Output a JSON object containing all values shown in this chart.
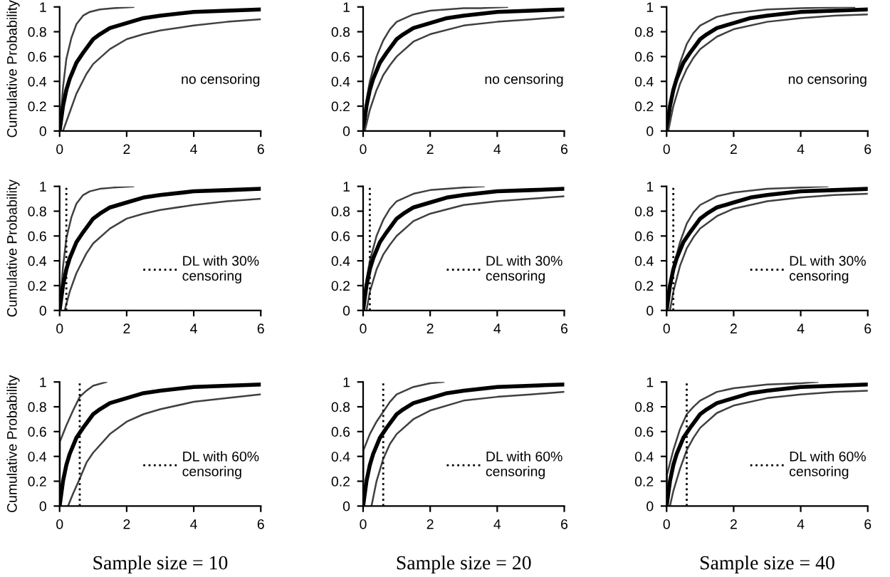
{
  "chart_data": [
    {
      "type": "line",
      "ylabel": "Cumulative Probability",
      "annotations": [
        "no censoring"
      ],
      "xlim": [
        0,
        6
      ],
      "ylim": [
        0,
        1
      ],
      "xticks": [
        0,
        2,
        4,
        6
      ],
      "yticks": [
        0,
        0.2,
        0.4,
        0.6,
        0.8,
        1
      ],
      "grid": false,
      "tick_labels": "xy",
      "series": [
        {
          "color": "#404040",
          "x": [
            0,
            0.1,
            0.2,
            0.35,
            0.5,
            0.7,
            0.9,
            1.2,
            1.6,
            2.2
          ],
          "values": [
            0,
            0.35,
            0.58,
            0.75,
            0.86,
            0.93,
            0.96,
            0.98,
            0.99,
            1.0
          ]
        },
        {
          "color": "#000000",
          "x": [
            0,
            0.1,
            0.2,
            0.3,
            0.5,
            0.7,
            1.0,
            1.2,
            1.5,
            2,
            2.5,
            3,
            4,
            5,
            6
          ],
          "values": [
            0,
            0.2,
            0.33,
            0.42,
            0.55,
            0.63,
            0.74,
            0.78,
            0.83,
            0.87,
            0.91,
            0.93,
            0.96,
            0.97,
            0.98
          ]
        },
        {
          "color": "#404040",
          "x": [
            0.1,
            0.3,
            0.5,
            0.8,
            1,
            1.5,
            2,
            2.5,
            3,
            4,
            5,
            6
          ],
          "values": [
            0,
            0.15,
            0.3,
            0.46,
            0.54,
            0.66,
            0.74,
            0.78,
            0.81,
            0.85,
            0.88,
            0.9
          ]
        }
      ]
    },
    {
      "type": "line",
      "annotations": [
        "no censoring"
      ],
      "xlim": [
        0,
        6
      ],
      "ylim": [
        0,
        1
      ],
      "xticks": [
        0,
        2,
        4,
        6
      ],
      "yticks": [
        0,
        0.2,
        0.4,
        0.6,
        0.8,
        1
      ],
      "grid": false,
      "series": [
        {
          "color": "#404040",
          "x": [
            0,
            0.1,
            0.2,
            0.4,
            0.6,
            0.8,
            1,
            1.5,
            2,
            2.5,
            3,
            3.5,
            4.3
          ],
          "values": [
            0,
            0.25,
            0.4,
            0.6,
            0.73,
            0.82,
            0.88,
            0.94,
            0.97,
            0.98,
            0.99,
            0.99,
            1.0
          ]
        },
        {
          "color": "#000000",
          "x": [
            0,
            0.1,
            0.2,
            0.3,
            0.5,
            0.7,
            1.0,
            1.2,
            1.5,
            2,
            2.5,
            3,
            4,
            5,
            6
          ],
          "values": [
            0,
            0.2,
            0.33,
            0.42,
            0.55,
            0.63,
            0.74,
            0.78,
            0.83,
            0.87,
            0.91,
            0.93,
            0.96,
            0.97,
            0.98
          ]
        },
        {
          "color": "#404040",
          "x": [
            0.05,
            0.2,
            0.4,
            0.6,
            0.8,
            1,
            1.5,
            2,
            3,
            4,
            5,
            6
          ],
          "values": [
            0,
            0.17,
            0.33,
            0.45,
            0.53,
            0.6,
            0.72,
            0.78,
            0.85,
            0.88,
            0.9,
            0.92
          ]
        }
      ]
    },
    {
      "type": "line",
      "annotations": [
        "no censoring"
      ],
      "xlim": [
        0,
        6
      ],
      "ylim": [
        0,
        1
      ],
      "xticks": [
        0,
        2,
        4,
        6
      ],
      "yticks": [
        0,
        0.2,
        0.4,
        0.6,
        0.8,
        1
      ],
      "grid": false,
      "series": [
        {
          "color": "#404040",
          "x": [
            0,
            0.1,
            0.2,
            0.4,
            0.6,
            0.8,
            1,
            1.5,
            2,
            3,
            4,
            5.6
          ],
          "values": [
            0,
            0.2,
            0.35,
            0.55,
            0.7,
            0.79,
            0.85,
            0.92,
            0.95,
            0.98,
            0.99,
            1.0
          ]
        },
        {
          "color": "#000000",
          "x": [
            0,
            0.1,
            0.2,
            0.3,
            0.5,
            0.7,
            1.0,
            1.2,
            1.5,
            2,
            2.5,
            3,
            4,
            5,
            6
          ],
          "values": [
            0,
            0.2,
            0.33,
            0.42,
            0.55,
            0.63,
            0.74,
            0.78,
            0.83,
            0.87,
            0.91,
            0.93,
            0.96,
            0.97,
            0.98
          ]
        },
        {
          "color": "#404040",
          "x": [
            0.05,
            0.2,
            0.4,
            0.6,
            0.8,
            1,
            1.5,
            2,
            3,
            4,
            5,
            6
          ],
          "values": [
            0,
            0.2,
            0.38,
            0.5,
            0.59,
            0.66,
            0.76,
            0.82,
            0.88,
            0.91,
            0.93,
            0.94
          ]
        }
      ]
    },
    {
      "type": "line",
      "ylabel": "Cumulative Probability",
      "xlim": [
        0,
        6
      ],
      "ylim": [
        0,
        1
      ],
      "xticks": [
        0,
        2,
        4,
        6
      ],
      "yticks": [
        0,
        0.2,
        0.4,
        0.6,
        0.8,
        1
      ],
      "grid": false,
      "legend": "right",
      "ref_lines": [
        {
          "axis": "x",
          "value": 0.2,
          "label": "DL with 30%\ncensoring",
          "color": "#000000",
          "line_style": "dotted"
        }
      ],
      "series": [
        {
          "color": "#404040",
          "x": [
            0,
            0.1,
            0.2,
            0.35,
            0.5,
            0.7,
            0.9,
            1.2,
            1.6,
            2.2
          ],
          "values": [
            0,
            0.35,
            0.58,
            0.75,
            0.86,
            0.93,
            0.96,
            0.98,
            0.99,
            1.0
          ]
        },
        {
          "color": "#000000",
          "x": [
            0,
            0.1,
            0.2,
            0.3,
            0.5,
            0.7,
            1.0,
            1.2,
            1.5,
            2,
            2.5,
            3,
            4,
            5,
            6
          ],
          "values": [
            0,
            0.2,
            0.33,
            0.42,
            0.55,
            0.63,
            0.74,
            0.78,
            0.83,
            0.87,
            0.91,
            0.93,
            0.96,
            0.97,
            0.98
          ]
        },
        {
          "color": "#404040",
          "x": [
            0.15,
            0.3,
            0.5,
            0.8,
            1,
            1.5,
            2,
            2.5,
            3,
            4,
            5,
            6
          ],
          "values": [
            0,
            0.15,
            0.3,
            0.46,
            0.54,
            0.66,
            0.74,
            0.78,
            0.81,
            0.85,
            0.88,
            0.9
          ]
        }
      ]
    },
    {
      "type": "line",
      "xlim": [
        0,
        6
      ],
      "ylim": [
        0,
        1
      ],
      "xticks": [
        0,
        2,
        4,
        6
      ],
      "yticks": [
        0,
        0.2,
        0.4,
        0.6,
        0.8,
        1
      ],
      "grid": false,
      "legend": "right",
      "ref_lines": [
        {
          "axis": "x",
          "value": 0.2,
          "label": "DL with 30%\ncensoring",
          "color": "#000000",
          "line_style": "dotted"
        }
      ],
      "series": [
        {
          "color": "#404040",
          "x": [
            0,
            0.1,
            0.2,
            0.4,
            0.6,
            0.8,
            1,
            1.5,
            2,
            2.5,
            3,
            3.6
          ],
          "values": [
            0,
            0.25,
            0.4,
            0.6,
            0.73,
            0.82,
            0.88,
            0.94,
            0.97,
            0.98,
            0.99,
            1.0
          ]
        },
        {
          "color": "#000000",
          "x": [
            0,
            0.1,
            0.2,
            0.3,
            0.5,
            0.7,
            1.0,
            1.2,
            1.5,
            2,
            2.5,
            3,
            4,
            5,
            6
          ],
          "values": [
            0,
            0.2,
            0.33,
            0.42,
            0.55,
            0.63,
            0.74,
            0.78,
            0.83,
            0.87,
            0.91,
            0.93,
            0.96,
            0.97,
            0.98
          ]
        },
        {
          "color": "#404040",
          "x": [
            0.1,
            0.2,
            0.4,
            0.6,
            0.8,
            1,
            1.5,
            2,
            3,
            4,
            5,
            6
          ],
          "values": [
            0,
            0.15,
            0.33,
            0.45,
            0.53,
            0.6,
            0.72,
            0.78,
            0.85,
            0.88,
            0.9,
            0.92
          ]
        }
      ]
    },
    {
      "type": "line",
      "xlim": [
        0,
        6
      ],
      "ylim": [
        0,
        1
      ],
      "xticks": [
        0,
        2,
        4,
        6
      ],
      "yticks": [
        0,
        0.2,
        0.4,
        0.6,
        0.8,
        1
      ],
      "grid": false,
      "legend": "right",
      "ref_lines": [
        {
          "axis": "x",
          "value": 0.2,
          "label": "DL with 30%\ncensoring",
          "color": "#000000",
          "line_style": "dotted"
        }
      ],
      "series": [
        {
          "color": "#404040",
          "x": [
            0,
            0.1,
            0.2,
            0.4,
            0.6,
            0.8,
            1,
            1.5,
            2,
            3,
            4,
            4.8
          ],
          "values": [
            0,
            0.2,
            0.35,
            0.55,
            0.7,
            0.79,
            0.85,
            0.92,
            0.95,
            0.98,
            0.99,
            1.0
          ]
        },
        {
          "color": "#000000",
          "x": [
            0,
            0.1,
            0.2,
            0.3,
            0.5,
            0.7,
            1.0,
            1.2,
            1.5,
            2,
            2.5,
            3,
            4,
            5,
            6
          ],
          "values": [
            0,
            0.2,
            0.33,
            0.42,
            0.55,
            0.63,
            0.74,
            0.78,
            0.83,
            0.87,
            0.91,
            0.93,
            0.96,
            0.97,
            0.98
          ]
        },
        {
          "color": "#404040",
          "x": [
            0.1,
            0.2,
            0.4,
            0.6,
            0.8,
            1,
            1.5,
            2,
            3,
            4,
            5,
            6
          ],
          "values": [
            0,
            0.15,
            0.36,
            0.5,
            0.59,
            0.66,
            0.76,
            0.82,
            0.88,
            0.91,
            0.93,
            0.94
          ]
        }
      ]
    },
    {
      "type": "line",
      "ylabel": "Cumulative Probability",
      "xlabel": "Sample size = 10",
      "xlim": [
        0,
        6
      ],
      "ylim": [
        0,
        1
      ],
      "xticks": [
        0,
        2,
        4,
        6
      ],
      "yticks": [
        0,
        0.2,
        0.4,
        0.6,
        0.8,
        1
      ],
      "grid": false,
      "legend": "right",
      "ref_lines": [
        {
          "axis": "x",
          "value": 0.6,
          "label": "DL with 60%\ncensoring",
          "color": "#000000",
          "line_style": "dotted"
        }
      ],
      "series": [
        {
          "color": "#404040",
          "x": [
            0,
            0.01,
            0.2,
            0.4,
            0.6,
            0.8,
            1.0,
            1.4
          ],
          "values": [
            0,
            0.52,
            0.65,
            0.77,
            0.88,
            0.93,
            0.97,
            1.0
          ]
        },
        {
          "color": "#000000",
          "x": [
            0,
            0.1,
            0.2,
            0.3,
            0.5,
            0.7,
            1.0,
            1.2,
            1.5,
            2,
            2.5,
            3,
            4,
            5,
            6
          ],
          "values": [
            0,
            0.2,
            0.33,
            0.42,
            0.55,
            0.63,
            0.74,
            0.78,
            0.83,
            0.87,
            0.91,
            0.93,
            0.96,
            0.97,
            0.98
          ]
        },
        {
          "color": "#404040",
          "x": [
            0.25,
            0.4,
            0.6,
            0.8,
            1,
            1.5,
            2,
            2.5,
            3,
            4,
            5,
            6
          ],
          "values": [
            0,
            0.1,
            0.22,
            0.35,
            0.43,
            0.58,
            0.68,
            0.74,
            0.78,
            0.84,
            0.87,
            0.9
          ]
        }
      ]
    },
    {
      "type": "line",
      "xlabel": "Sample size = 20",
      "xlim": [
        0,
        6
      ],
      "ylim": [
        0,
        1
      ],
      "xticks": [
        0,
        2,
        4,
        6
      ],
      "yticks": [
        0,
        0.2,
        0.4,
        0.6,
        0.8,
        1
      ],
      "grid": false,
      "legend": "right",
      "ref_lines": [
        {
          "axis": "x",
          "value": 0.6,
          "label": "DL with 60%\ncensoring",
          "color": "#000000",
          "line_style": "dotted"
        }
      ],
      "series": [
        {
          "color": "#404040",
          "x": [
            0,
            0.01,
            0.2,
            0.4,
            0.6,
            0.8,
            1,
            1.5,
            2,
            2.4
          ],
          "values": [
            0,
            0.45,
            0.58,
            0.68,
            0.76,
            0.84,
            0.9,
            0.96,
            0.99,
            1.0
          ]
        },
        {
          "color": "#000000",
          "x": [
            0,
            0.1,
            0.2,
            0.3,
            0.5,
            0.7,
            1.0,
            1.2,
            1.5,
            2,
            2.5,
            3,
            4,
            5,
            6
          ],
          "values": [
            0,
            0.2,
            0.33,
            0.42,
            0.55,
            0.63,
            0.74,
            0.78,
            0.83,
            0.87,
            0.91,
            0.93,
            0.96,
            0.97,
            0.98
          ]
        },
        {
          "color": "#404040",
          "x": [
            0.25,
            0.4,
            0.6,
            0.8,
            1,
            1.5,
            2,
            3,
            4,
            5,
            6
          ],
          "values": [
            0,
            0.2,
            0.38,
            0.5,
            0.58,
            0.7,
            0.77,
            0.85,
            0.88,
            0.9,
            0.92
          ]
        }
      ]
    },
    {
      "type": "line",
      "xlabel": "Sample size = 40",
      "xlim": [
        0,
        6
      ],
      "ylim": [
        0,
        1
      ],
      "xticks": [
        0,
        2,
        4,
        6
      ],
      "yticks": [
        0,
        0.2,
        0.4,
        0.6,
        0.8,
        1
      ],
      "grid": false,
      "legend": "right",
      "ref_lines": [
        {
          "axis": "x",
          "value": 0.6,
          "label": "DL with 60%\ncensoring",
          "color": "#000000",
          "line_style": "dotted"
        }
      ],
      "series": [
        {
          "color": "#404040",
          "x": [
            0,
            0.01,
            0.2,
            0.4,
            0.6,
            0.8,
            1,
            1.5,
            2,
            3,
            4,
            4.5
          ],
          "values": [
            0,
            0.25,
            0.45,
            0.62,
            0.74,
            0.8,
            0.85,
            0.92,
            0.95,
            0.98,
            0.99,
            1.0
          ]
        },
        {
          "color": "#000000",
          "x": [
            0,
            0.1,
            0.2,
            0.3,
            0.5,
            0.7,
            1.0,
            1.2,
            1.5,
            2,
            2.5,
            3,
            4,
            5,
            6
          ],
          "values": [
            0,
            0.2,
            0.33,
            0.42,
            0.55,
            0.63,
            0.74,
            0.78,
            0.83,
            0.87,
            0.91,
            0.93,
            0.96,
            0.97,
            0.98
          ]
        },
        {
          "color": "#404040",
          "x": [
            0.1,
            0.2,
            0.4,
            0.6,
            0.8,
            1,
            1.5,
            2,
            3,
            4,
            5,
            6
          ],
          "values": [
            0,
            0.12,
            0.3,
            0.45,
            0.55,
            0.63,
            0.75,
            0.81,
            0.87,
            0.9,
            0.92,
            0.93
          ]
        }
      ]
    }
  ]
}
